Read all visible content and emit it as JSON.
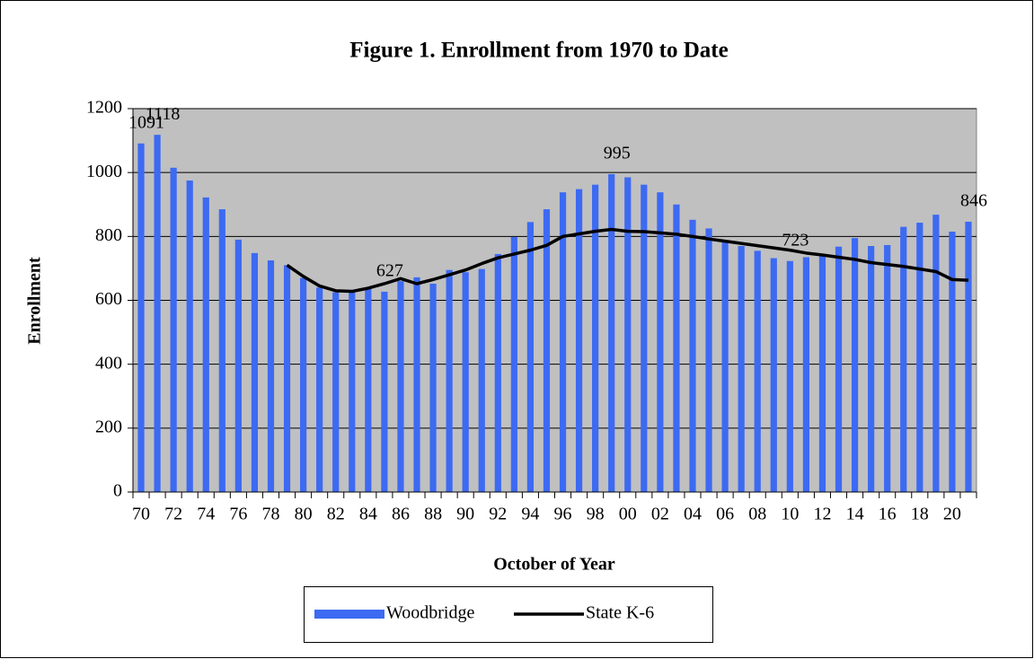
{
  "chart_data": {
    "type": "bar+line",
    "title": "Figure 1.  Enrollment from 1970 to Date",
    "y_label": "Enrollment",
    "x_label": "October of Year",
    "categories": [
      "70",
      null,
      "72",
      null,
      "74",
      null,
      "76",
      null,
      "78",
      null,
      "80",
      null,
      "82",
      null,
      "84",
      null,
      "86",
      null,
      "88",
      null,
      "90",
      null,
      "92",
      null,
      "94",
      null,
      "96",
      null,
      "98",
      null,
      "00",
      null,
      "02",
      null,
      "04",
      null,
      "06",
      null,
      "08",
      null,
      "10",
      null,
      "12",
      null,
      "14",
      null,
      "16",
      null,
      "18",
      null,
      "20",
      null
    ],
    "series": [
      {
        "name": "Woodbridge",
        "type": "bar",
        "color": "#3d6af2",
        "values": [
          1091,
          1118,
          1015,
          975,
          922,
          885,
          790,
          748,
          725,
          710,
          670,
          640,
          625,
          625,
          640,
          627,
          660,
          672,
          652,
          695,
          688,
          698,
          745,
          798,
          845,
          885,
          938,
          948,
          962,
          995,
          985,
          962,
          938,
          900,
          852,
          825,
          785,
          770,
          755,
          732,
          723,
          735,
          740,
          768,
          795,
          770,
          773,
          830,
          843,
          868,
          815,
          846
        ],
        "label_indices": [
          0,
          1,
          15,
          29,
          40,
          51
        ]
      },
      {
        "name": "State K-6",
        "type": "line",
        "color": "#000000",
        "values": [
          null,
          null,
          null,
          null,
          null,
          null,
          null,
          null,
          null,
          710,
          675,
          645,
          630,
          628,
          638,
          652,
          668,
          652,
          665,
          680,
          695,
          715,
          733,
          745,
          757,
          772,
          800,
          808,
          816,
          822,
          816,
          815,
          811,
          807,
          800,
          792,
          785,
          778,
          771,
          764,
          757,
          748,
          742,
          735,
          728,
          718,
          712,
          706,
          698,
          690,
          665,
          663
        ]
      }
    ],
    "ylim": [
      0,
      1200
    ],
    "yticks": [
      0,
      200,
      400,
      600,
      800,
      1000,
      1200
    ],
    "grid": true,
    "plot_background": "#c0c0c0",
    "legend": "bottom"
  }
}
